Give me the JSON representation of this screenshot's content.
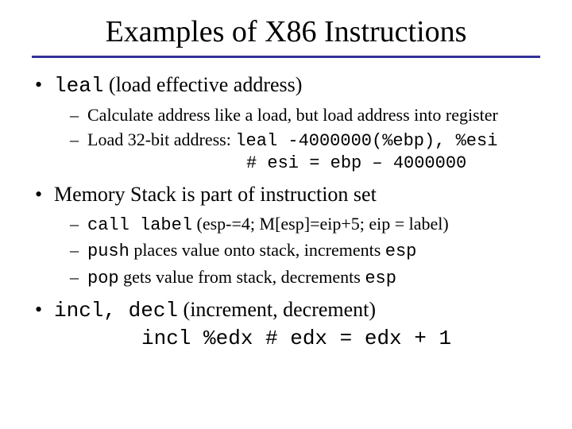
{
  "colors": {
    "background": "#ffffff",
    "text": "#000000",
    "rule": "#333399"
  },
  "fonts": {
    "serif": "Times New Roman",
    "mono": "Courier New",
    "title_size_pt": 38,
    "body_size_pt": 26,
    "sub_size_pt": 22
  },
  "title": "Examples of X86 Instructions",
  "bullets": {
    "b1": {
      "code": "leal",
      "text": " (load effective address)",
      "sub1": "Calculate address like a load, but load address into register",
      "sub2_prefix": "Load 32-bit address: ",
      "sub2_code1": "leal -4000000(%ebp), %esi",
      "sub2_code2": "# esi = ebp – 4000000"
    },
    "b2": {
      "text": "Memory Stack is part of instruction set",
      "sub1_code": "call label",
      "sub1_rest": " (esp-=4; M[esp]=eip+5; eip = label)",
      "sub2_code": "push",
      "sub2_rest": " places value onto stack, increments ",
      "sub2_code2": "esp",
      "sub3_code": "pop",
      "sub3_rest": " gets value from stack, decrements ",
      "sub3_code2": "esp"
    },
    "b3": {
      "code": "incl, decl",
      "text": " (increment, decrement)",
      "example": "incl %edx # edx = edx + 1"
    }
  }
}
